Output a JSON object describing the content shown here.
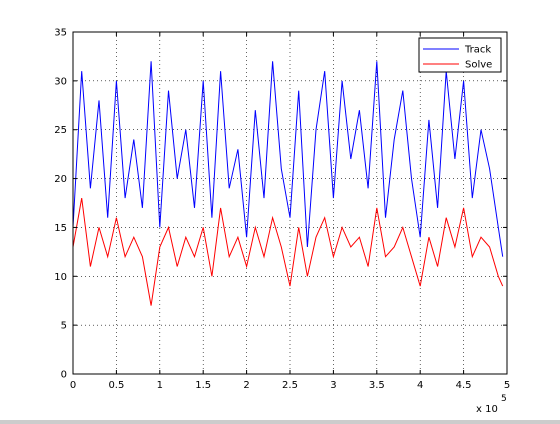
{
  "colors": {
    "track": "#0000ff",
    "solve": "#ff0000",
    "axis": "#000000",
    "background": "#ffffff"
  },
  "chart_data": {
    "type": "line",
    "title": "",
    "xlabel": "",
    "ylabel": "",
    "xlim": [
      0,
      500000
    ],
    "ylim": [
      0,
      35
    ],
    "grid": true,
    "legend_position": "top-right",
    "x_multiplier_label": "x 10",
    "x_multiplier_exponent": "5",
    "xticks": [
      0,
      50000,
      100000,
      150000,
      200000,
      250000,
      300000,
      350000,
      400000,
      450000,
      500000
    ],
    "xtick_labels": [
      "0",
      "0.5",
      "1",
      "1.5",
      "2",
      "2.5",
      "3",
      "3.5",
      "4",
      "4.5",
      "5"
    ],
    "yticks": [
      0,
      5,
      10,
      15,
      20,
      25,
      30,
      35
    ],
    "ytick_labels": [
      "0",
      "5",
      "10",
      "15",
      "20",
      "25",
      "30",
      "35"
    ],
    "series": [
      {
        "name": "Track",
        "color": "#0000ff",
        "x": [
          0,
          10000,
          20000,
          30000,
          40000,
          50000,
          60000,
          70000,
          80000,
          90000,
          100000,
          110000,
          120000,
          130000,
          140000,
          150000,
          160000,
          170000,
          180000,
          190000,
          200000,
          210000,
          220000,
          230000,
          240000,
          250000,
          260000,
          270000,
          280000,
          290000,
          300000,
          310000,
          320000,
          330000,
          340000,
          350000,
          360000,
          370000,
          380000,
          390000,
          400000,
          410000,
          420000,
          430000,
          440000,
          450000,
          460000,
          470000,
          480000,
          490000,
          495000
        ],
        "y": [
          15,
          31,
          19,
          28,
          16,
          30,
          18,
          24,
          17,
          32,
          15,
          29,
          20,
          25,
          17,
          30,
          16,
          31,
          19,
          23,
          14,
          27,
          18,
          32,
          21,
          16,
          29,
          13,
          25,
          31,
          18,
          30,
          22,
          27,
          19,
          32,
          16,
          24,
          29,
          20,
          14,
          26,
          17,
          31,
          22,
          30,
          18,
          25,
          21,
          15,
          12
        ]
      },
      {
        "name": "Solve",
        "color": "#ff0000",
        "x": [
          0,
          10000,
          20000,
          30000,
          40000,
          50000,
          60000,
          70000,
          80000,
          90000,
          100000,
          110000,
          120000,
          130000,
          140000,
          150000,
          160000,
          170000,
          180000,
          190000,
          200000,
          210000,
          220000,
          230000,
          240000,
          250000,
          260000,
          270000,
          280000,
          290000,
          300000,
          310000,
          320000,
          330000,
          340000,
          350000,
          360000,
          370000,
          380000,
          390000,
          400000,
          410000,
          420000,
          430000,
          440000,
          450000,
          460000,
          470000,
          480000,
          490000,
          495000
        ],
        "y": [
          13,
          18,
          11,
          15,
          12,
          16,
          12,
          14,
          12,
          7,
          13,
          15,
          11,
          14,
          12,
          15,
          10,
          17,
          12,
          14,
          11,
          15,
          12,
          16,
          13,
          9,
          15,
          10,
          14,
          16,
          12,
          15,
          13,
          14,
          11,
          17,
          12,
          13,
          15,
          12,
          9,
          14,
          11,
          16,
          13,
          17,
          12,
          14,
          13,
          10,
          9
        ]
      }
    ]
  }
}
